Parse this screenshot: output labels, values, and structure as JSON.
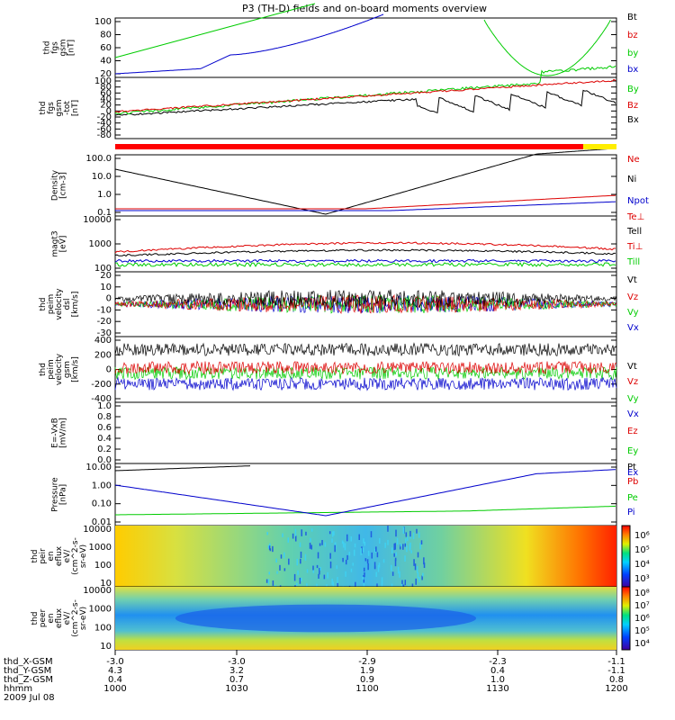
{
  "title": "P3 (TH-D) fields and on-board moments overview",
  "colors": {
    "black": "#000000",
    "red": "#dd0000",
    "green": "#00cc00",
    "blue": "#0000cc"
  },
  "footer": {
    "rows": [
      {
        "label": "thd_X-GSM",
        "values": [
          "-3.0",
          "-3.0",
          "-2.9",
          "-2.3",
          "-1.1"
        ]
      },
      {
        "label": "thd_Y-GSM",
        "values": [
          "4.3",
          "3.2",
          "1.9",
          "0.4",
          "-1.1"
        ]
      },
      {
        "label": "thd_Z-GSM",
        "values": [
          "0.4",
          "0.7",
          "0.9",
          "1.0",
          "0.8"
        ]
      },
      {
        "label": "hhmm",
        "values": [
          "1000",
          "1030",
          "1100",
          "1130",
          "1200"
        ]
      }
    ],
    "date": "2009 Jul 08"
  },
  "chart_data": [
    {
      "type": "line",
      "ylabel": "thd\nfgs\ngsm\n[nT]",
      "yticks": [
        "100",
        "80",
        "60",
        "40",
        "20"
      ],
      "series": [
        {
          "name": "Bt",
          "color": "#000000"
        },
        {
          "name": "bz",
          "color": "#dd0000"
        },
        {
          "name": "by",
          "color": "#00cc00"
        },
        {
          "name": "bx",
          "color": "#0000cc"
        }
      ]
    },
    {
      "type": "line",
      "ylabel": "thd\nfgs\ngsm\n-tot\n[nT]",
      "yticks": [
        "100",
        "80",
        "60",
        "40",
        "20",
        "0",
        "-20",
        "-40",
        "-60",
        "-80"
      ],
      "series": [
        {
          "name": "By",
          "color": "#00cc00"
        },
        {
          "name": "Bz",
          "color": "#dd0000"
        },
        {
          "name": "Bx",
          "color": "#000000"
        }
      ]
    },
    {
      "type": "line",
      "ylabel": "Density\n[cm-3]",
      "yticks": [
        "100.0",
        "10.0",
        "1.0",
        "0.1"
      ],
      "yscale": "log",
      "series": [
        {
          "name": "Ne",
          "color": "#dd0000"
        },
        {
          "name": "Ni",
          "color": "#000000"
        },
        {
          "name": "Npot",
          "color": "#0000cc"
        }
      ]
    },
    {
      "type": "line",
      "ylabel": "magt3\n[eV]",
      "yticks": [
        "10000",
        "1000",
        "100"
      ],
      "yscale": "log",
      "series": [
        {
          "name": "Te⊥",
          "color": "#dd0000"
        },
        {
          "name": "Tell",
          "color": "#000000"
        },
        {
          "name": "Ti⊥",
          "color": "#dd0000"
        },
        {
          "name": "Till",
          "color": "#00cc00"
        }
      ]
    },
    {
      "type": "line",
      "ylabel": "thd\npeim\nvelocity\ndsl\n[km/s]",
      "yticks": [
        "20",
        "10",
        "0",
        "-10",
        "-20",
        "-30"
      ],
      "series": [
        {
          "name": "Vt",
          "color": "#000000"
        },
        {
          "name": "Vz",
          "color": "#dd0000"
        },
        {
          "name": "Vy",
          "color": "#00cc00"
        },
        {
          "name": "Vx",
          "color": "#0000cc"
        }
      ]
    },
    {
      "type": "line",
      "ylabel": "thd\npeim\nvelocity\ngsm\n[km/s]",
      "yticks": [
        "400",
        "200",
        "0",
        "-200",
        "-400"
      ],
      "series": [
        {
          "name": "Vt",
          "color": "#000000"
        },
        {
          "name": "Vz",
          "color": "#dd0000"
        },
        {
          "name": "Vy",
          "color": "#00cc00"
        },
        {
          "name": "Vx",
          "color": "#0000cc"
        }
      ]
    },
    {
      "type": "line",
      "ylabel": "E=-VxB\n[mV/m]",
      "yticks": [
        "1.0",
        "0.8",
        "0.6",
        "0.4",
        "0.2",
        "0.0"
      ],
      "series": [
        {
          "name": "Ez",
          "color": "#dd0000"
        },
        {
          "name": "Ey",
          "color": "#00cc00"
        },
        {
          "name": "Ex",
          "color": "#0000cc"
        }
      ]
    },
    {
      "type": "line",
      "ylabel": "Pressure\n[nPa]",
      "yticks": [
        "10.00",
        "1.00",
        "0.10",
        "0.01"
      ],
      "yscale": "log",
      "series": [
        {
          "name": "Pt",
          "color": "#000000"
        },
        {
          "name": "Pb",
          "color": "#dd0000"
        },
        {
          "name": "Pe",
          "color": "#00cc00"
        },
        {
          "name": "Pi",
          "color": "#0000cc"
        }
      ]
    },
    {
      "type": "heatmap",
      "ylabel": "thd\npeir\nen\neflux\neV/\n(cm^2-s-\nsr-eV)",
      "yticks": [
        "10000",
        "1000",
        "100",
        "10"
      ],
      "colorbar": [
        "10⁶",
        "10⁵",
        "10⁴",
        "10³"
      ]
    },
    {
      "type": "heatmap",
      "ylabel": "thd\npeer\nen\neflux\neV/\n(cm^2-s-\nsr-eV)",
      "yticks": [
        "10000",
        "1000",
        "100",
        "10"
      ],
      "colorbar": [
        "10⁸",
        "10⁷",
        "10⁶",
        "10⁵",
        "10⁴"
      ]
    }
  ]
}
